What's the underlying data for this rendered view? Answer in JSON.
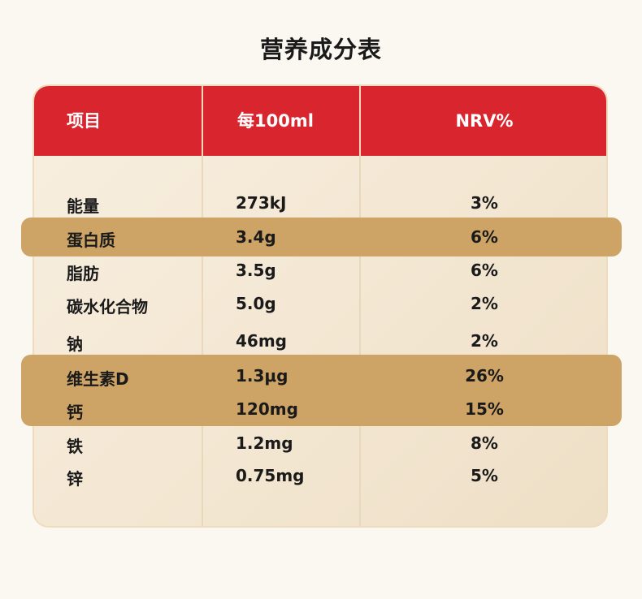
{
  "title": "营养成分表",
  "table": {
    "headers": {
      "item": "项目",
      "per100ml": "每100ml",
      "nrv": "NRV%"
    },
    "rows": [
      {
        "name": "能量",
        "value": "273kJ",
        "nrv": "3%",
        "highlight": false
      },
      {
        "name": "蛋白质",
        "value": "3.4g",
        "nrv": "6%",
        "highlight": true
      },
      {
        "name": "脂肪",
        "value": "3.5g",
        "nrv": "6%",
        "highlight": false
      },
      {
        "name": "碳水化合物",
        "value": "5.0g",
        "nrv": "2%",
        "highlight": false
      },
      {
        "name": "钠",
        "value": "46mg",
        "nrv": "2%",
        "highlight": false
      },
      {
        "name": "维生素D",
        "value": "1.3μg",
        "nrv": "26%",
        "highlight": true
      },
      {
        "name": "钙",
        "value": "120mg",
        "nrv": "15%",
        "highlight": true
      },
      {
        "name": "铁",
        "value": "1.2mg",
        "nrv": "8%",
        "highlight": false
      },
      {
        "name": "锌",
        "value": "0.75mg",
        "nrv": "5%",
        "highlight": false
      }
    ]
  },
  "colors": {
    "header_bg": "#d9262e",
    "highlight_bg": "#cda466",
    "card_bg": "#f6ecdc",
    "page_bg": "#fbf8f1"
  }
}
